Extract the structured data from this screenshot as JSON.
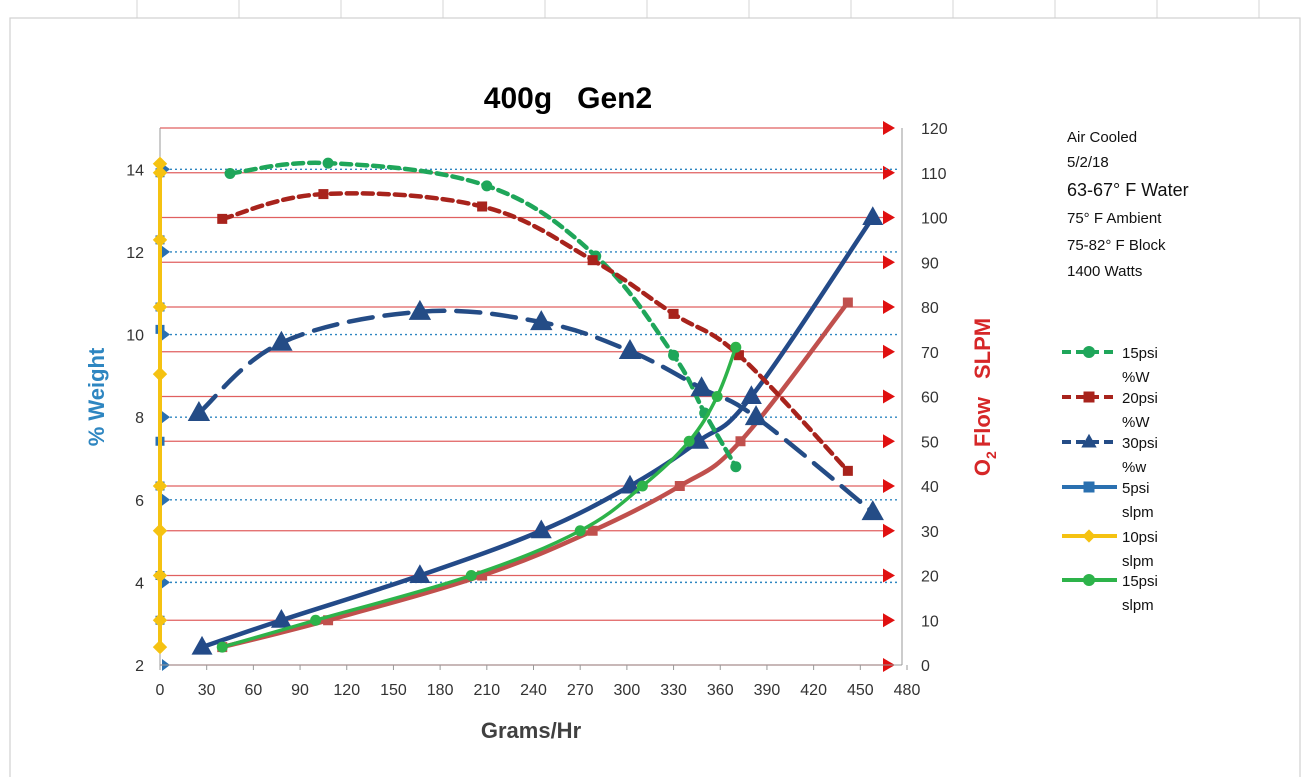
{
  "chart_data": {
    "type": "line",
    "title": "400g   Gen2",
    "xlabel": "Grams/Hr",
    "ylabel_left": "% Weight",
    "ylabel_right_main": "Flow",
    "ylabel_right_o2": "O",
    "ylabel_right_sub": "2",
    "ylabel_right_unit": "SLPM",
    "xlim": [
      0,
      480
    ],
    "xticks": [
      "0",
      "30",
      "60",
      "90",
      "120",
      "150",
      "180",
      "210",
      "240",
      "270",
      "300",
      "330",
      "360",
      "390",
      "420",
      "450",
      "480"
    ],
    "ylim_left": [
      2,
      15
    ],
    "yticks_left": [
      "2",
      "4",
      "6",
      "8",
      "10",
      "12",
      "14"
    ],
    "ylim_right": [
      0,
      120
    ],
    "yticks_right": [
      "0",
      "10",
      "20",
      "30",
      "40",
      "50",
      "60",
      "70",
      "80",
      "90",
      "100",
      "110",
      "120"
    ],
    "grid": true,
    "legend_position": "right",
    "annotations": [
      "Air Cooled",
      "5/2/18",
      "63-67° F Water",
      "75° F Ambient",
      "75-82° F Block",
      "1400 Watts"
    ],
    "series": [
      {
        "name": "15psi %W",
        "axis": "left",
        "color": "#1fa65a",
        "dash": "10,6",
        "marker": "circle",
        "x": [
          45,
          108,
          210,
          280,
          330,
          350,
          370
        ],
        "y": [
          13.9,
          14.15,
          13.6,
          11.9,
          9.5,
          8.1,
          6.8
        ]
      },
      {
        "name": "20psi %W",
        "axis": "left",
        "color": "#a8231c",
        "dash": "10,6",
        "marker": "square",
        "x": [
          40,
          105,
          207,
          278,
          330,
          372,
          442
        ],
        "y": [
          12.8,
          13.4,
          13.1,
          11.8,
          10.5,
          9.5,
          6.7
        ]
      },
      {
        "name": "30psi %w",
        "axis": "left",
        "color": "#244c86",
        "dash": "24,12",
        "marker": "triangle",
        "x": [
          25,
          78,
          167,
          245,
          302,
          348,
          383,
          458
        ],
        "y": [
          8.1,
          9.8,
          10.55,
          10.3,
          9.6,
          8.7,
          8.0,
          5.7
        ]
      },
      {
        "name": "5psi slpm",
        "axis": "right",
        "color": "#2a70b0",
        "dash": "",
        "marker": "square",
        "x": [
          0,
          0,
          0,
          0,
          0,
          0,
          0,
          0
        ],
        "y": [
          10,
          20,
          40,
          50,
          75,
          80,
          95,
          110
        ]
      },
      {
        "name": "10psi slpm",
        "axis": "right",
        "color": "#f5c211",
        "dash": "",
        "marker": "diamond",
        "x": [
          0,
          0,
          0,
          0,
          0,
          0,
          0,
          0,
          0,
          0
        ],
        "y": [
          4,
          10,
          20,
          30,
          40,
          65,
          80,
          95,
          110,
          112
        ]
      },
      {
        "name": "15psi slpm",
        "axis": "right",
        "color": "#2db34a",
        "dash": "",
        "marker": "circle",
        "x": [
          40,
          100,
          200,
          270,
          310,
          340,
          358,
          370
        ],
        "y": [
          4,
          10,
          20,
          30,
          40,
          50,
          60,
          71
        ]
      }
    ],
    "extra_lines": [
      {
        "name": "Weight trend (unlabeled)",
        "axis": "right",
        "color": "#234a88",
        "marker": "triangle",
        "x": [
          27,
          78,
          167,
          245,
          302,
          346,
          380,
          458
        ],
        "y": [
          4,
          10,
          20,
          30,
          40,
          50,
          60,
          100
        ]
      },
      {
        "name": "Flow trend (unlabeled)",
        "axis": "right",
        "color": "#c0504d",
        "marker": "square",
        "x": [
          40,
          108,
          207,
          278,
          334,
          373,
          442
        ],
        "y": [
          4,
          10,
          20,
          30,
          40,
          50,
          81
        ]
      }
    ]
  }
}
